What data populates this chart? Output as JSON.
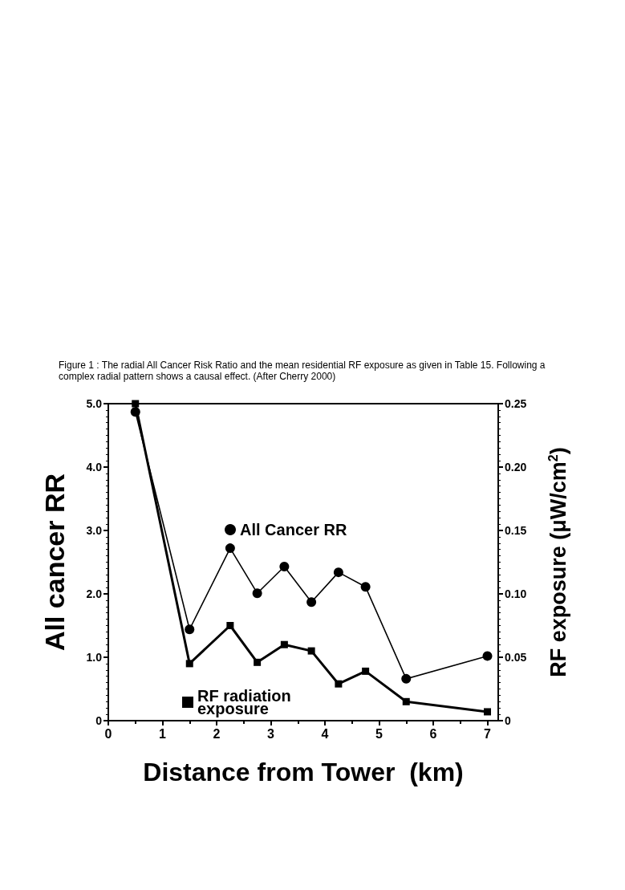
{
  "chart_data": {
    "type": "line",
    "title": "Figure 1 : The radial All Cancer Risk Ratio and the mean residential RF exposure as given in Table 15. Following a complex radial pattern shows a causal effect. (After Cherry 2000)",
    "xlabel": "Distance from Tower  (km)",
    "ylabel": "All cancer RR",
    "y2label": "RF exposure (μW/cm$^{2}$)",
    "series": [
      {
        "name": "All Cancer RR",
        "color": "#000000",
        "marker": "circle",
        "x": [
          0.5,
          1.5,
          2.25,
          2.75,
          3.25,
          3.75,
          4.25,
          4.75,
          5.5,
          7
        ],
        "values": [
          4.87,
          1.44,
          2.72,
          2.01,
          2.43,
          1.87,
          2.34,
          2.11,
          0.66,
          1.02
        ]
      },
      {
        "name": "RF radiation exposure",
        "color": "#000000",
        "marker": "square",
        "axis": "y2",
        "x": [
          0.5,
          1.5,
          2.25,
          2.75,
          3.25,
          3.75,
          4.25,
          4.75,
          5.5,
          7
        ],
        "values": [
          0.25,
          0.045,
          0.075,
          0.046,
          0.06,
          0.055,
          0.029,
          0.039,
          0.015,
          0.007
        ]
      }
    ],
    "xlim": [
      0,
      7.2
    ],
    "xticks": [
      0,
      1,
      2,
      3,
      4,
      5,
      6,
      7
    ],
    "ylim": [
      0,
      5
    ],
    "yticks": [
      {
        "value": 0,
        "label": "0"
      },
      {
        "value": 1,
        "label": "1.0"
      },
      {
        "value": 2,
        "label": "2.0"
      },
      {
        "value": 3,
        "label": "3.0"
      },
      {
        "value": 4,
        "label": "4.0"
      },
      {
        "value": 5,
        "label": "5.0"
      }
    ],
    "y2lim": [
      0,
      0.25
    ],
    "y2ticks": [
      {
        "value": 0,
        "label": "0"
      },
      0.05,
      {
        "value": 0.1,
        "label": "0.10"
      },
      0.15,
      {
        "value": 0.2,
        "label": "0.20"
      },
      0.25
    ],
    "grid": false,
    "legend": "center",
    "line_style": "solid"
  }
}
